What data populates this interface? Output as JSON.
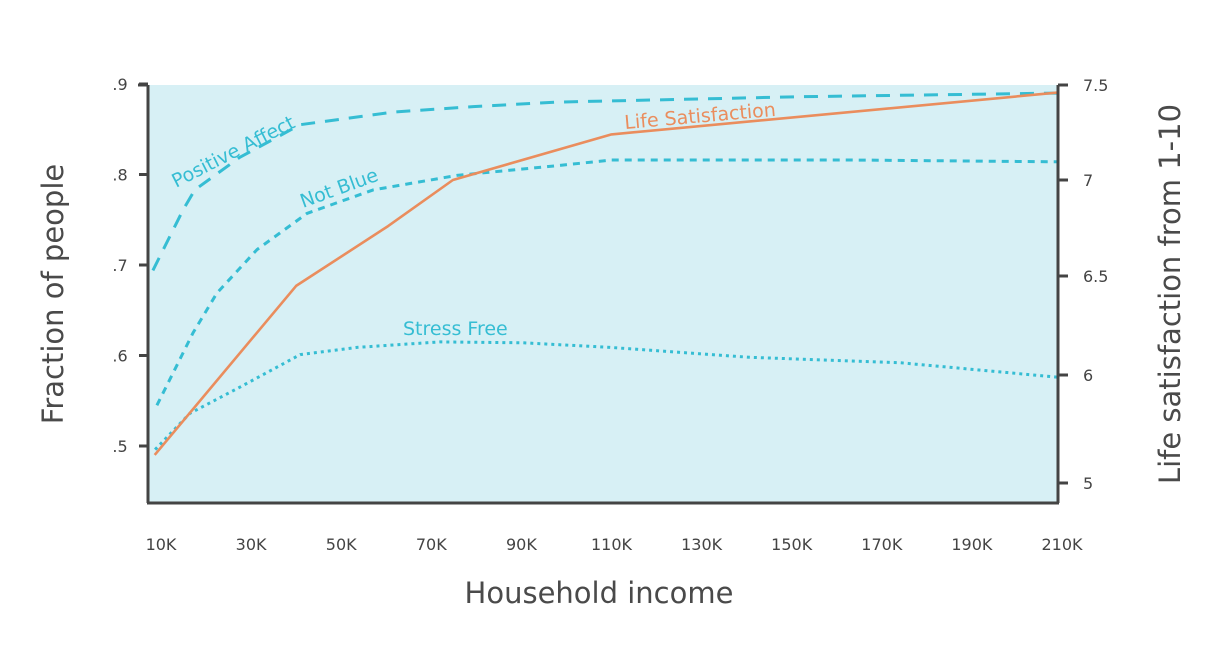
{
  "chart_data": {
    "type": "line",
    "title": "",
    "xlabel": "Household income",
    "ylabel": "Fraction of people",
    "y2label": "Life satisfaction from 1-10",
    "x_ticks": [
      "10K",
      "30K",
      "50K",
      "70K",
      "90K",
      "110K",
      "130K",
      "150K",
      "170K",
      "190K",
      "210K"
    ],
    "y_ticks": [
      ".9",
      ".8",
      ".7",
      ".6",
      ".5"
    ],
    "y2_ticks": [
      "7.5",
      "7",
      "6.5",
      "6",
      "5"
    ],
    "x_unit": "thousand USD",
    "xlim": [
      7,
      210
    ],
    "ylim": [
      0.435,
      0.9
    ],
    "grid": false,
    "legend": "inline labels",
    "colors": {
      "background": "#d7f0f5",
      "cyan": "#35bdd3",
      "orange": "#ea8d5d",
      "axis": "#444444"
    },
    "series": [
      {
        "name": "Positive Affect",
        "axis": "left",
        "style": "dashed",
        "color": "#35bdd3",
        "x": [
          8.2,
          14.9,
          17.5,
          27.5,
          40.9,
          61.5,
          79.3,
          98,
          152,
          209
        ],
        "y": [
          0.694,
          0.761,
          0.783,
          0.819,
          0.855,
          0.869,
          0.875,
          0.88,
          0.886,
          0.89
        ]
      },
      {
        "name": "Not Blue",
        "axis": "left",
        "style": "short-dashed",
        "color": "#35bdd3",
        "x": [
          9.1,
          12.7,
          17.1,
          22.4,
          31.3,
          42.4,
          57.1,
          75.7,
          98.6,
          110,
          163,
          209
        ],
        "y": [
          0.545,
          0.581,
          0.625,
          0.669,
          0.717,
          0.757,
          0.783,
          0.799,
          0.81,
          0.816,
          0.816,
          0.814
        ]
      },
      {
        "name": "Stress Free",
        "axis": "left",
        "style": "dotted",
        "color": "#35bdd3",
        "x": [
          8.7,
          16.4,
          27.5,
          40.9,
          53.5,
          71.9,
          90.4,
          109.7,
          140.7,
          174,
          209
        ],
        "y": [
          0.496,
          0.536,
          0.565,
          0.601,
          0.609,
          0.615,
          0.614,
          0.609,
          0.598,
          0.592,
          0.576
        ]
      },
      {
        "name": "Life Satisfaction",
        "axis": "right",
        "style": "solid",
        "color": "#ea8d5d",
        "x": [
          8.6,
          40,
          60.4,
          74.8,
          110,
          209
        ],
        "y": [
          5.26,
          6.45,
          6.76,
          7.0,
          7.24,
          7.46
        ]
      }
    ]
  }
}
